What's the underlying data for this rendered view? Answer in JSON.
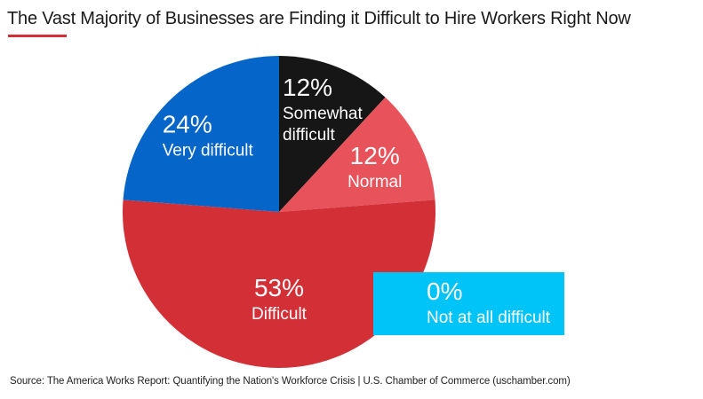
{
  "title": "The Vast Majority of Businesses are Finding it Difficult to Hire Workers Right Now",
  "source": "Source: The America Works Report: Quantifying the Nation's Workforce Crisis | U.S. Chamber of Commerce (uschamber.com)",
  "colors": {
    "accent_rule": "#d22f36"
  },
  "chart_data": {
    "type": "pie",
    "title": "The Vast Majority of Businesses are Finding it Difficult to Hire Workers Right Now",
    "slices": [
      {
        "label": "Somewhat difficult",
        "label_lines": [
          "Somewhat",
          "difficult"
        ],
        "value": 12,
        "pct_label": "12%",
        "color": "#161616"
      },
      {
        "label": "Normal",
        "label_lines": [
          "Normal"
        ],
        "value": 12,
        "pct_label": "12%",
        "color": "#e8525a"
      },
      {
        "label": "Difficult",
        "label_lines": [
          "Difficult"
        ],
        "value": 53,
        "pct_label": "53%",
        "color": "#d22f36"
      },
      {
        "label": "Very difficult",
        "label_lines": [
          "Very difficult"
        ],
        "value": 24,
        "pct_label": "24%",
        "color": "#0565c9"
      }
    ],
    "callout": {
      "label": "Not at all difficult",
      "value": 0,
      "pct_label": "0%",
      "color": "#00c3f7"
    }
  }
}
